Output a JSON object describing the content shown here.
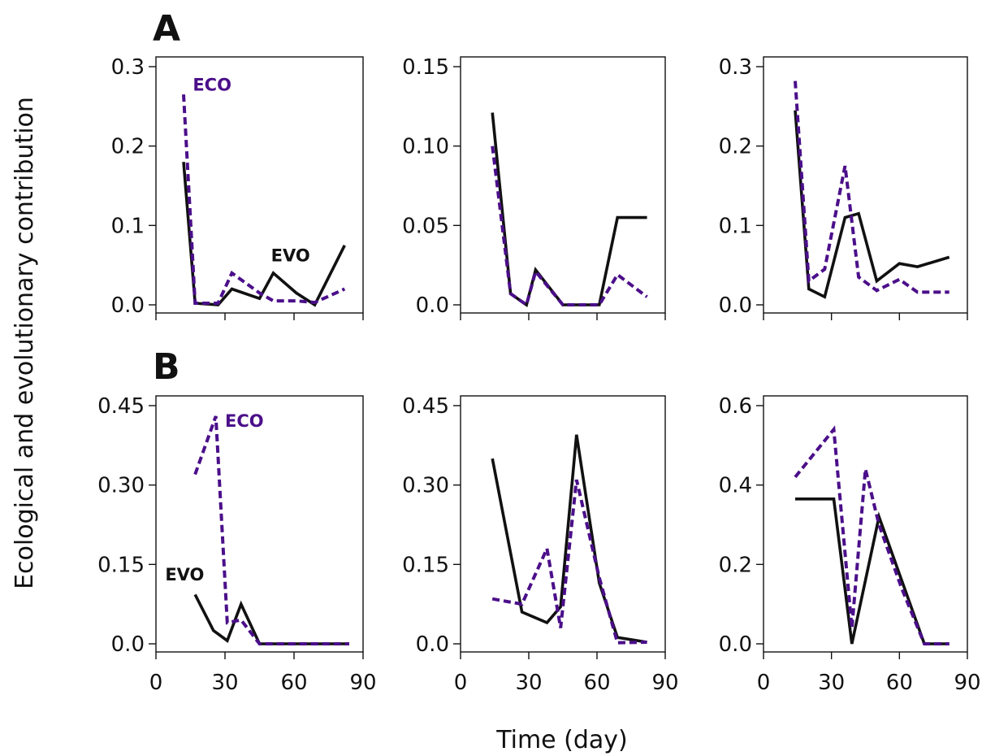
{
  "figure": {
    "xlabel": "Time (day)",
    "ylabel": "Ecological and evolutionary contribution",
    "row_labels": [
      "A",
      "B"
    ]
  },
  "style": {
    "evo_color": "#111111",
    "eco_color": "#4b0f8a"
  },
  "chart_data": [
    {
      "type": "line",
      "panel": "A-1",
      "xlim": [
        0,
        90
      ],
      "ylim": [
        0,
        0.3
      ],
      "yticks": [
        "0.0",
        "0.1",
        "0.2",
        "0.3"
      ],
      "xticks": [
        0,
        30,
        60,
        90
      ],
      "series": [
        {
          "name": "EVO",
          "x": [
            12,
            17,
            27,
            33,
            45,
            51,
            61,
            69,
            82
          ],
          "y": [
            0.18,
            0.002,
            0.0,
            0.02,
            0.008,
            0.04,
            0.015,
            0.0,
            0.075
          ]
        },
        {
          "name": "ECO",
          "x": [
            12,
            17,
            27,
            33,
            45,
            51,
            61,
            69,
            82
          ],
          "y": [
            0.265,
            0.002,
            0.002,
            0.04,
            0.015,
            0.005,
            0.005,
            0.003,
            0.02
          ]
        }
      ],
      "annotations": [
        {
          "text": "ECO",
          "series": "ECO",
          "x": 16,
          "y": 0.27
        },
        {
          "text": "EVO",
          "series": "EVO",
          "x": 50,
          "y": 0.055
        }
      ]
    },
    {
      "type": "line",
      "panel": "A-2",
      "xlim": [
        0,
        90
      ],
      "ylim": [
        0,
        0.15
      ],
      "yticks": [
        "0.0",
        "0.05",
        "0.10",
        "0.15"
      ],
      "xticks": [
        0,
        30,
        60,
        90
      ],
      "series": [
        {
          "name": "EVO",
          "x": [
            14,
            22,
            29,
            33,
            45,
            51,
            61,
            69,
            82
          ],
          "y": [
            0.121,
            0.007,
            0.0,
            0.022,
            0.0,
            0.0,
            0.0,
            0.055,
            0.055
          ]
        },
        {
          "name": "ECO",
          "x": [
            14,
            22,
            29,
            33,
            45,
            51,
            61,
            69,
            82
          ],
          "y": [
            0.1,
            0.007,
            0.0,
            0.021,
            0.0,
            0.0,
            0.0,
            0.019,
            0.005
          ]
        }
      ]
    },
    {
      "type": "line",
      "panel": "A-3",
      "xlim": [
        0,
        90
      ],
      "ylim": [
        0,
        0.3
      ],
      "yticks": [
        "0.0",
        "0.1",
        "0.2",
        "0.3"
      ],
      "xticks": [
        0,
        30,
        60,
        90
      ],
      "series": [
        {
          "name": "EVO",
          "x": [
            14,
            20,
            27,
            36,
            42,
            50,
            60,
            68,
            82
          ],
          "y": [
            0.245,
            0.02,
            0.01,
            0.11,
            0.115,
            0.03,
            0.052,
            0.048,
            0.06
          ]
        },
        {
          "name": "ECO",
          "x": [
            14,
            20,
            27,
            36,
            42,
            50,
            60,
            68,
            82
          ],
          "y": [
            0.282,
            0.03,
            0.045,
            0.175,
            0.035,
            0.018,
            0.032,
            0.016,
            0.016
          ]
        }
      ]
    },
    {
      "type": "line",
      "panel": "B-1",
      "xlim": [
        0,
        90
      ],
      "ylim": [
        0,
        0.45
      ],
      "yticks": [
        "0.0",
        "0.15",
        "0.30",
        "0.45"
      ],
      "xticks": [
        0,
        30,
        60,
        90
      ],
      "series": [
        {
          "name": "EVO",
          "x": [
            17,
            25,
            31,
            37,
            45,
            51,
            61,
            69,
            84
          ],
          "y": [
            0.093,
            0.025,
            0.006,
            0.075,
            0.0,
            0.0,
            0.0,
            0.0,
            0.0
          ]
        },
        {
          "name": "ECO",
          "x": [
            17,
            26,
            31,
            37,
            45,
            51,
            61,
            69,
            84
          ],
          "y": [
            0.32,
            0.43,
            0.04,
            0.045,
            0.0,
            0.0,
            0.0,
            0.0,
            0.0
          ]
        }
      ],
      "annotations": [
        {
          "text": "ECO",
          "series": "ECO",
          "x": 30,
          "y": 0.41
        },
        {
          "text": "EVO",
          "series": "EVO",
          "x": 4,
          "y": 0.12
        }
      ]
    },
    {
      "type": "line",
      "panel": "B-2",
      "xlim": [
        0,
        90
      ],
      "ylim": [
        0,
        0.45
      ],
      "yticks": [
        "0.0",
        "0.15",
        "0.30",
        "0.45"
      ],
      "xticks": [
        0,
        30,
        60,
        90
      ],
      "series": [
        {
          "name": "EVO",
          "x": [
            14,
            27,
            38,
            44,
            51,
            61,
            69,
            82
          ],
          "y": [
            0.35,
            0.06,
            0.04,
            0.07,
            0.395,
            0.115,
            0.012,
            0.003
          ]
        },
        {
          "name": "ECO",
          "x": [
            14,
            27,
            38,
            44,
            51,
            61,
            69,
            82
          ],
          "y": [
            0.085,
            0.075,
            0.18,
            0.03,
            0.31,
            0.125,
            0.002,
            0.003
          ]
        }
      ]
    },
    {
      "type": "line",
      "panel": "B-3",
      "xlim": [
        0,
        90
      ],
      "ylim": [
        0,
        0.6
      ],
      "yticks": [
        "0.0",
        "0.2",
        "0.4",
        "0.6"
      ],
      "xticks": [
        0,
        30,
        60,
        90
      ],
      "series": [
        {
          "name": "EVO",
          "x": [
            14,
            31,
            39,
            51,
            61,
            71,
            82
          ],
          "y": [
            0.365,
            0.365,
            0.0,
            0.32,
            0.16,
            0.0,
            0.0
          ]
        },
        {
          "name": "ECO",
          "x": [
            14,
            31,
            39,
            45,
            51,
            61,
            71,
            82
          ],
          "y": [
            0.42,
            0.54,
            0.04,
            0.44,
            0.3,
            0.14,
            0.0,
            0.0
          ]
        }
      ]
    }
  ]
}
